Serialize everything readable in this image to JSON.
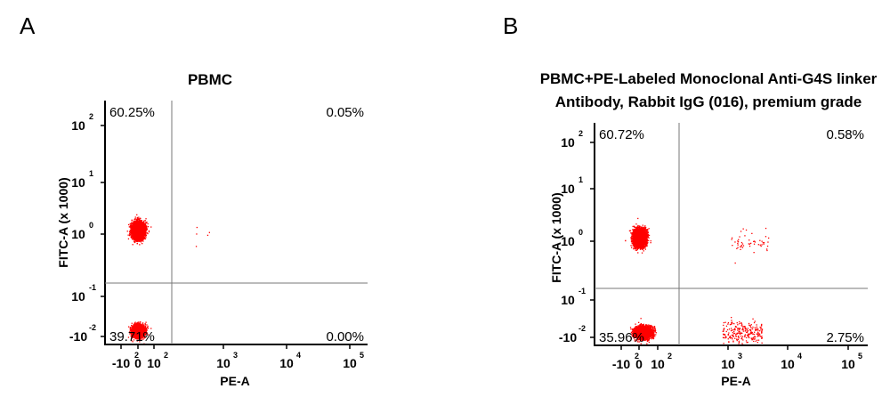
{
  "chart_data": [
    {
      "type": "scatter",
      "panel_label": "A",
      "title_lines": [
        "PBMC"
      ],
      "xlabel": "PE-A",
      "ylabel": "FITC-A (x 1000)",
      "x_scale": "biexponential",
      "y_scale": "biexponential",
      "x_ticks": [
        {
          "base": "-10",
          "exp": "2"
        },
        {
          "base": "0",
          "exp": ""
        },
        {
          "base": "10",
          "exp": "2"
        },
        {
          "base": "10",
          "exp": "3"
        },
        {
          "base": "10",
          "exp": "4"
        },
        {
          "base": "10",
          "exp": "5"
        }
      ],
      "y_ticks": [
        {
          "base": "-10",
          "exp": "-2"
        },
        {
          "base": "10",
          "exp": "-1"
        },
        {
          "base": "10",
          "exp": "0"
        },
        {
          "base": "10",
          "exp": "1"
        },
        {
          "base": "10",
          "exp": "2"
        }
      ],
      "quadrants": {
        "upper_left": "60.25%",
        "upper_right": "0.05%",
        "lower_left": "39.71%",
        "lower_right": "0.00%"
      },
      "populations": [
        {
          "name": "upper-left cluster",
          "center": [
            0,
            1.2
          ],
          "spread": [
            20,
            0.45
          ],
          "fraction": 0.6025
        },
        {
          "name": "lower-left cluster",
          "center": [
            0,
            0.006
          ],
          "spread": [
            15,
            0.004
          ],
          "fraction": 0.3971
        },
        {
          "name": "upper-right events",
          "center": [
            500,
            1.0
          ],
          "spread": [
            150,
            0.5
          ],
          "fraction": 0.0005
        }
      ],
      "color": "#ff0000"
    },
    {
      "type": "scatter",
      "panel_label": "B",
      "title_lines": [
        "PBMC+PE-Labeled Monoclonal Anti-G4S linker",
        "Antibody, Rabbit IgG (016), premium grade"
      ],
      "xlabel": "PE-A",
      "ylabel": "FITC-A (x 1000)",
      "x_scale": "biexponential",
      "y_scale": "biexponential",
      "x_ticks": [
        {
          "base": "-10",
          "exp": "2"
        },
        {
          "base": "0",
          "exp": ""
        },
        {
          "base": "10",
          "exp": "2"
        },
        {
          "base": "10",
          "exp": "3"
        },
        {
          "base": "10",
          "exp": "4"
        },
        {
          "base": "10",
          "exp": "5"
        }
      ],
      "y_ticks": [
        {
          "base": "-10",
          "exp": "-2"
        },
        {
          "base": "10",
          "exp": "-1"
        },
        {
          "base": "10",
          "exp": "0"
        },
        {
          "base": "10",
          "exp": "1"
        },
        {
          "base": "10",
          "exp": "2"
        }
      ],
      "quadrants": {
        "upper_left": "60.72%",
        "upper_right": "0.58%",
        "lower_left": "35.96%",
        "lower_right": "2.75%"
      },
      "populations": [
        {
          "name": "upper-left cluster",
          "center": [
            0,
            1.2
          ],
          "spread": [
            25,
            0.45
          ],
          "fraction": 0.6072
        },
        {
          "name": "lower-left cluster",
          "center": [
            20,
            0.006
          ],
          "spread": [
            40,
            0.004
          ],
          "fraction": 0.3596
        },
        {
          "name": "lower-right events",
          "center": [
            1500,
            0.006
          ],
          "spread": [
            1500,
            0.006
          ],
          "fraction": 0.0275
        },
        {
          "name": "upper-right events",
          "center": [
            2000,
            1.0
          ],
          "spread": [
            2000,
            0.6
          ],
          "fraction": 0.0058
        }
      ],
      "color": "#ff0000"
    }
  ]
}
